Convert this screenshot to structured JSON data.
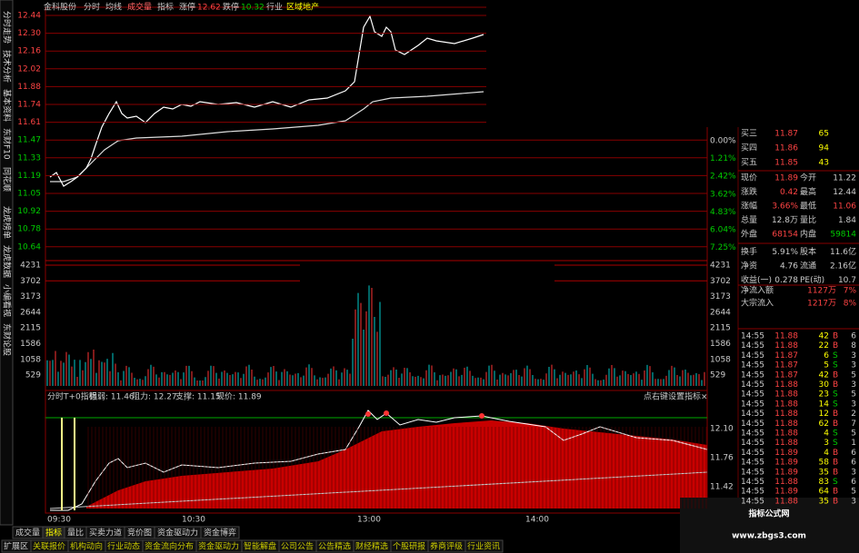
{
  "side_tabs": [
    "分时走势",
    "技术分析",
    "基本资料",
    "东财F10",
    "同花顺",
    "龙虎榜单",
    "龙虎数据",
    "小编看视",
    "东财论股"
  ],
  "header": {
    "stock": "金科股份",
    "items": [
      "分时",
      "均线",
      "成交量",
      "指标"
    ],
    "limit_up_label": "涨停",
    "limit_up": "12.62",
    "limit_down_label": "跌停",
    "limit_down": "10.32",
    "industry_label": "行业",
    "industry": "区域地产"
  },
  "price_axis": [
    "12.44",
    "12.30",
    "12.16",
    "12.02",
    "11.88",
    "11.74",
    "11.61",
    "11.47",
    "11.33",
    "11.19",
    "11.05",
    "10.92",
    "10.78",
    "10.64"
  ],
  "pct_axis": [
    "0.00%",
    "1.21%",
    "2.42%",
    "3.62%",
    "4.83%",
    "6.04%",
    "7.25%"
  ],
  "volume_axis": [
    "4231",
    "3702",
    "3173",
    "2644",
    "2115",
    "1586",
    "1058",
    "529"
  ],
  "indicator": {
    "name": "分时T+0指标",
    "strength": "强弱: 11.46",
    "resistance": "阻力: 12.27",
    "support": "支撑: 11.15",
    "price": "现价: 11.89",
    "hint": "点右键设置指标",
    "close": "×",
    "axis": [
      "12.10",
      "11.76",
      "11.42"
    ]
  },
  "time_axis": [
    "09:30",
    "10:30",
    "13:00",
    "14:00"
  ],
  "tabs_row1": [
    "成交量",
    "指标",
    "量比",
    "买卖力道",
    "竞价图",
    "资金驱动力",
    "资金博弈"
  ],
  "tabs_row2": [
    "扩展区",
    "关联报价",
    "机构动向",
    "行业动态",
    "资金流向分布",
    "资金驱动力",
    "智能解盘",
    "公司公告",
    "公告精选",
    "财经精选",
    "个股研报",
    "券商评级",
    "行业资讯"
  ],
  "bids": [
    [
      "买三",
      "11.87",
      "65"
    ],
    [
      "买四",
      "11.86",
      "94"
    ],
    [
      "买五",
      "11.85",
      "43"
    ]
  ],
  "quote": [
    [
      "现价",
      "11.89",
      "今开",
      "11.22"
    ],
    [
      "涨跌",
      "0.42",
      "最高",
      "12.44"
    ],
    [
      "涨幅",
      "3.66%",
      "最低",
      "11.06"
    ],
    [
      "总量",
      "12.8万",
      "量比",
      "1.84"
    ],
    [
      "外盘",
      "68154",
      "内盘",
      "59814"
    ],
    [
      "换手",
      "5.91%",
      "股本",
      "11.6亿"
    ],
    [
      "净资",
      "4.76",
      "流通",
      "2.16亿"
    ],
    [
      "收益(一)",
      "0.278",
      "PE(动)",
      "10.7"
    ]
  ],
  "flows": [
    [
      "净流入额",
      "1127万",
      "7%"
    ],
    [
      "大宗流入",
      "1217万",
      "8%"
    ]
  ],
  "trades": [
    [
      "14:55",
      "11.88",
      "42",
      "B",
      "6"
    ],
    [
      "14:55",
      "11.88",
      "22",
      "B",
      "8"
    ],
    [
      "14:55",
      "11.87",
      "6",
      "S",
      "3"
    ],
    [
      "14:55",
      "11.87",
      "5",
      "S",
      "3"
    ],
    [
      "14:55",
      "11.87",
      "42",
      "B",
      "5"
    ],
    [
      "14:55",
      "11.88",
      "30",
      "B",
      "3"
    ],
    [
      "14:55",
      "11.88",
      "23",
      "S",
      "5"
    ],
    [
      "14:55",
      "11.88",
      "14",
      "S",
      "3"
    ],
    [
      "14:55",
      "11.88",
      "12",
      "B",
      "2"
    ],
    [
      "14:55",
      "11.88",
      "62",
      "B",
      "7"
    ],
    [
      "14:55",
      "11.88",
      "4",
      "S",
      "5"
    ],
    [
      "14:55",
      "11.88",
      "3",
      "S",
      "1"
    ],
    [
      "14:55",
      "11.89",
      "4",
      "B",
      "6"
    ],
    [
      "14:55",
      "11.89",
      "58",
      "B",
      "6"
    ],
    [
      "14:55",
      "11.89",
      "35",
      "B",
      "3"
    ],
    [
      "14:55",
      "11.88",
      "83",
      "S",
      "6"
    ],
    [
      "14:55",
      "11.89",
      "64",
      "B",
      "5"
    ],
    [
      "14:55",
      "11.88",
      "35",
      "B",
      "3"
    ]
  ],
  "watermark": {
    "title": "指标公式网",
    "url": "www.zbgs3.com"
  }
}
